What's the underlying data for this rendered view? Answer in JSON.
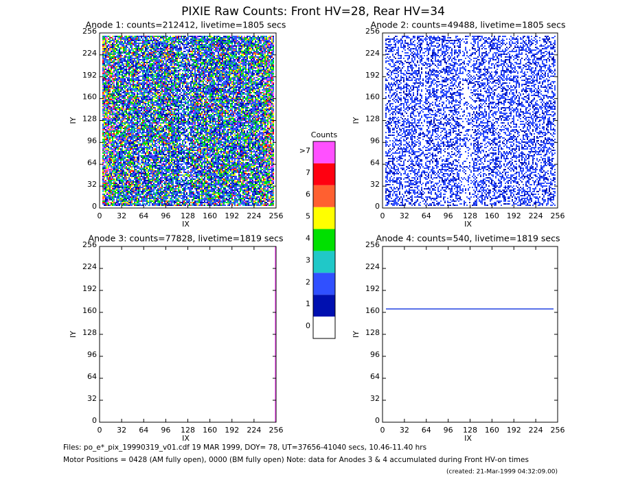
{
  "title": "PIXIE Raw Counts:  Front HV=28, Rear HV=34",
  "chart_data": [
    {
      "type": "heatmap",
      "title": "Anode 1: counts=212412, livetime=1805 secs",
      "x_label": "IX",
      "y_label": "IY",
      "xlim": [
        0,
        256
      ],
      "ylim": [
        0,
        256
      ],
      "xticks": [
        0,
        32,
        64,
        96,
        128,
        160,
        192,
        224,
        256
      ],
      "yticks": [
        0,
        32,
        64,
        96,
        128,
        160,
        192,
        224,
        256
      ]
    },
    {
      "type": "heatmap",
      "title": "Anode 2: counts=49488, livetime=1805 secs",
      "x_label": "IX",
      "y_label": "IY",
      "xlim": [
        0,
        256
      ],
      "ylim": [
        0,
        256
      ],
      "xticks": [
        0,
        32,
        64,
        96,
        128,
        160,
        192,
        224,
        256
      ],
      "yticks": [
        0,
        32,
        64,
        96,
        128,
        160,
        192,
        224,
        256
      ]
    },
    {
      "type": "heatmap",
      "title": "Anode 3: counts=77828, livetime=1819 secs",
      "x_label": "IX",
      "y_label": "IY",
      "xlim": [
        0,
        256
      ],
      "ylim": [
        0,
        256
      ],
      "xticks": [
        0,
        32,
        64,
        96,
        128,
        160,
        192,
        224,
        256
      ],
      "yticks": [
        0,
        32,
        64,
        96,
        128,
        160,
        192,
        224,
        256
      ],
      "series": [
        {
          "color": "#ff50ff",
          "x": [
            255,
            255
          ],
          "values": [
            0,
            256
          ]
        }
      ]
    },
    {
      "type": "heatmap",
      "title": "Anode 4: counts=540, livetime=1819 secs",
      "x_label": "IX",
      "y_label": "IY",
      "xlim": [
        0,
        256
      ],
      "ylim": [
        0,
        256
      ],
      "xticks": [
        0,
        32,
        64,
        96,
        128,
        160,
        192,
        224,
        256
      ],
      "yticks": [
        0,
        32,
        64,
        96,
        128,
        160,
        192,
        224,
        256
      ],
      "series": [
        {
          "color": "#2040e0",
          "x": [
            5,
            250
          ],
          "values": [
            165,
            165
          ]
        }
      ]
    }
  ],
  "colorbar": {
    "title": "Counts",
    "ticks": [
      0,
      1,
      2,
      3,
      4,
      5,
      6,
      7,
      {
        "value": 8,
        "label": ">7"
      }
    ],
    "colors": [
      "#ffffff",
      "#0010b0",
      "#3050ff",
      "#20c8c8",
      "#00e000",
      "#ffff00",
      "#ff6030",
      "#ff0010",
      "#ff50ff"
    ]
  },
  "footer": [
    "Files: po_e*_pix_19990319_v01.cdf    19 MAR 1999, DOY= 78, UT=37656-41040 secs, 10.46-11.40 hrs",
    "Motor Positions = 0428 (AM fully open), 0000 (BM fully open)    Note: data for Anodes 3 & 4 accumulated during Front HV-on times"
  ],
  "created": "(created: 21-Mar-1999 04:32:09.00)"
}
